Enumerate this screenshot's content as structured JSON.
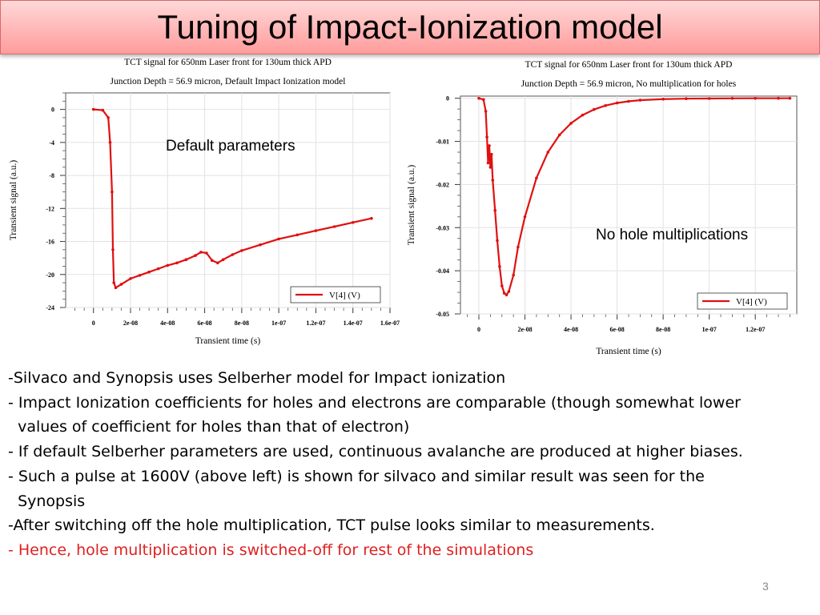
{
  "slide": {
    "title": "Tuning of Impact-Ionization model",
    "page_number": "3"
  },
  "body": {
    "lines": [
      {
        "text": "-Silvaco and Synopsis uses Selberher model for Impact ionization",
        "color": "#000000"
      },
      {
        "text": "- Impact Ionization coefficients for holes and electrons are comparable (though somewhat lower",
        "color": "#000000"
      },
      {
        "text": "  values of coefficient for holes than that of electron)",
        "color": "#000000"
      },
      {
        "text": "- If default Selberher parameters are used, continuous avalanche are produced at higher biases.",
        "color": "#000000"
      },
      {
        "text": "- Such a pulse at 1600V (above left) is shown for silvaco and similar result was seen for the",
        "color": "#000000"
      },
      {
        "text": "  Synopsis",
        "color": "#000000"
      },
      {
        "text": "-After switching off the hole multiplication, TCT pulse looks similar to measurements.",
        "color": "#000000"
      },
      {
        "text": "- Hence, hole multiplication is switched-off for rest of the simulations",
        "color": "#e02020"
      }
    ]
  },
  "chart_data": [
    {
      "type": "line",
      "title": "TCT signal for 650nm Laser front for 130um thick APD",
      "subtitle": "Junction Depth = 56.9 micron, Default Impact Ionization model",
      "annotation": "Default parameters",
      "xlabel": "Transient time (s)",
      "ylabel": "Transient signal (a.u.)",
      "xlim": [
        -1.5e-08,
        1.6e-07
      ],
      "ylim": [
        -24,
        2
      ],
      "xticks": [
        0,
        2e-08,
        4e-08,
        6e-08,
        8e-08,
        1e-07,
        1.2e-07,
        1.4e-07,
        1.6e-07
      ],
      "xtick_labels": [
        "0",
        "2e-08",
        "4e-08",
        "6e-08",
        "8e-08",
        "1e-07",
        "1.2e-07",
        "1.4e-07",
        "1.6e-07"
      ],
      "yticks": [
        0,
        -4,
        -8,
        -12,
        -16,
        -20,
        -24
      ],
      "ytick_labels": [
        "0",
        "-4",
        "-8",
        "-12",
        "-16",
        "-20",
        "-24"
      ],
      "grid": true,
      "legend_position": "bottom-right",
      "series": [
        {
          "name": "V[4] (V)",
          "color": "#e01010",
          "x": [
            0,
            5e-09,
            8e-09,
            9e-09,
            1e-08,
            1.05e-08,
            1.1e-08,
            1.2e-08,
            1.5e-08,
            2e-08,
            2.5e-08,
            3e-08,
            3.5e-08,
            4e-08,
            4.5e-08,
            5e-08,
            5.5e-08,
            5.8e-08,
            6.1e-08,
            6.4e-08,
            6.7e-08,
            7e-08,
            7.5e-08,
            8e-08,
            9e-08,
            1e-07,
            1.1e-07,
            1.2e-07,
            1.3e-07,
            1.4e-07,
            1.5e-07
          ],
          "y": [
            0,
            -0.1,
            -1.0,
            -4.0,
            -10.0,
            -17.0,
            -21.0,
            -21.6,
            -21.2,
            -20.5,
            -20.1,
            -19.7,
            -19.3,
            -18.9,
            -18.6,
            -18.2,
            -17.7,
            -17.3,
            -17.4,
            -18.3,
            -18.6,
            -18.2,
            -17.6,
            -17.1,
            -16.4,
            -15.7,
            -15.2,
            -14.7,
            -14.2,
            -13.7,
            -13.2
          ]
        }
      ]
    },
    {
      "type": "line",
      "title": "TCT signal for 650nm Laser front for 130um thick APD",
      "subtitle": "Junction Depth = 56.9 micron, No multiplication for holes",
      "annotation": "No hole multiplications",
      "xlabel": "Transient time (s)",
      "ylabel": "Transient signal (a.u.)",
      "xlim": [
        -8e-09,
        1.38e-07
      ],
      "ylim": [
        -0.05,
        0.0005
      ],
      "xticks": [
        0,
        2e-08,
        4e-08,
        6e-08,
        8e-08,
        1e-07,
        1.2e-07
      ],
      "xtick_labels": [
        "0",
        "2e-08",
        "4e-08",
        "6e-08",
        "8e-08",
        "1e-07",
        "1.2e-07"
      ],
      "yticks": [
        0,
        -0.01,
        -0.02,
        -0.03,
        -0.04,
        -0.05
      ],
      "ytick_labels": [
        "0",
        "-0.01",
        "-0.02",
        "-0.03",
        "-0.04",
        "-0.05"
      ],
      "grid": true,
      "legend_position": "bottom-right",
      "series": [
        {
          "name": "V[4] (V)",
          "color": "#e01010",
          "x": [
            0,
            2e-09,
            3e-09,
            3.5e-09,
            4e-09,
            4.5e-09,
            5e-09,
            5.5e-09,
            6e-09,
            7e-09,
            8e-09,
            9e-09,
            1e-08,
            1.1e-08,
            1.2e-08,
            1.3e-08,
            1.5e-08,
            1.7e-08,
            2e-08,
            2.5e-08,
            3e-08,
            3.5e-08,
            4e-08,
            4.5e-08,
            5e-08,
            5.5e-08,
            6e-08,
            6.5e-08,
            7e-08,
            8e-08,
            9e-08,
            1e-07,
            1.1e-07,
            1.2e-07,
            1.3e-07,
            1.35e-07
          ],
          "y": [
            0,
            -0.0003,
            -0.003,
            -0.009,
            -0.015,
            -0.011,
            -0.016,
            -0.013,
            -0.019,
            -0.026,
            -0.033,
            -0.039,
            -0.0435,
            -0.0452,
            -0.0456,
            -0.0448,
            -0.041,
            -0.0345,
            -0.0275,
            -0.0185,
            -0.0125,
            -0.0085,
            -0.0058,
            -0.0039,
            -0.0026,
            -0.0017,
            -0.0011,
            -0.0007,
            -0.00045,
            -0.0002,
            -0.0001,
            -5e-05,
            -2e-05,
            -1e-05,
            0,
            0
          ]
        }
      ]
    }
  ]
}
